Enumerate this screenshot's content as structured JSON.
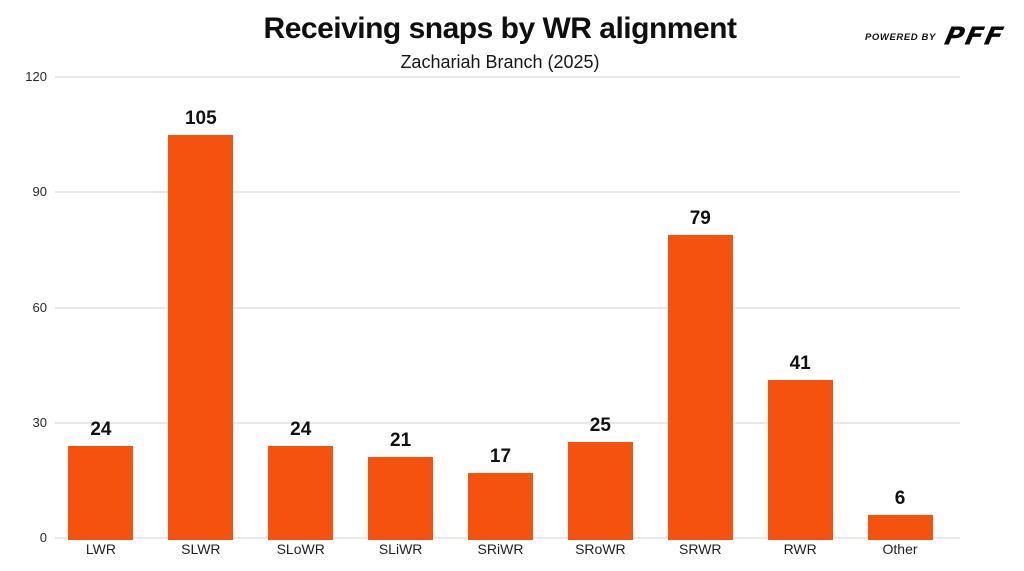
{
  "header": {
    "title": "Receiving snaps by WR alignment",
    "subtitle": "Zachariah Branch (2025)",
    "logo": {
      "powered_by": "POWERED BY",
      "brand": "PFF"
    }
  },
  "chart_data": {
    "type": "bar",
    "title": "Receiving snaps by WR alignment",
    "subtitle": "Zachariah Branch (2025)",
    "categories": [
      "LWR",
      "SLWR",
      "SLoWR",
      "SLiWR",
      "SRiWR",
      "SRoWR",
      "SRWR",
      "RWR",
      "Other"
    ],
    "values": [
      24,
      105,
      24,
      21,
      17,
      25,
      79,
      41,
      6
    ],
    "xlabel": "",
    "ylabel": "",
    "ylim": [
      0,
      120
    ],
    "yticks": [
      0,
      30,
      60,
      90,
      120
    ],
    "grid": true,
    "legend": false,
    "value_labels": true,
    "bar_color": "#F4520E"
  },
  "colors": {
    "bar": "#F4520E",
    "gridline": "#E8E8E8",
    "text": "#111111",
    "background": "#FFFFFF"
  }
}
